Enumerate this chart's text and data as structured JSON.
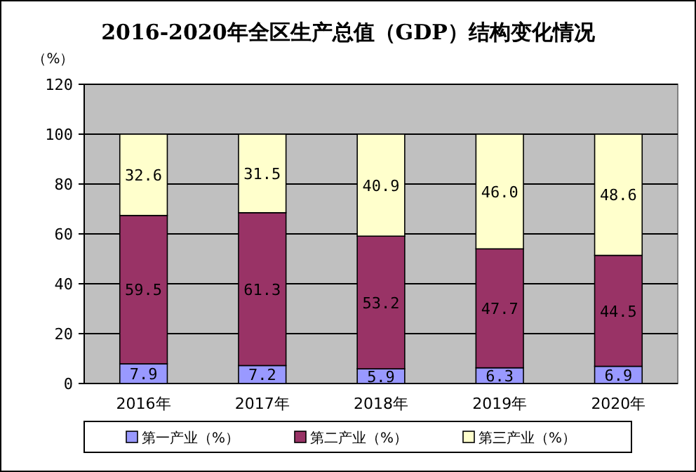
{
  "chart_data": {
    "type": "bar",
    "stacked": true,
    "title": "2016-2020年全区生产总值（GDP）结构变化情况",
    "ylabel": "（%）",
    "categories": [
      "2016年",
      "2017年",
      "2018年",
      "2019年",
      "2020年"
    ],
    "series": [
      {
        "name": "第一产业（%）",
        "color": "#9999ff",
        "values": [
          7.9,
          7.2,
          5.9,
          6.3,
          6.9
        ]
      },
      {
        "name": "第二产业（%）",
        "color": "#993366",
        "values": [
          59.5,
          61.3,
          53.2,
          47.7,
          44.5
        ]
      },
      {
        "name": "第三产业（%）",
        "color": "#ffffcc",
        "values": [
          32.6,
          31.5,
          40.9,
          46.0,
          48.6
        ]
      }
    ],
    "value_labels": [
      [
        "7.9",
        "7.2",
        "5.9",
        "6.3",
        "6.9"
      ],
      [
        "59.5",
        "61.3",
        "53.2",
        "47.7",
        "44.5"
      ],
      [
        "32.6",
        "31.5",
        "40.9",
        "46.0",
        "48.6"
      ]
    ],
    "ylim": [
      0,
      120
    ],
    "yticks": [
      0,
      20,
      40,
      60,
      80,
      100,
      120
    ],
    "grid": "y",
    "legend": "bottom"
  }
}
